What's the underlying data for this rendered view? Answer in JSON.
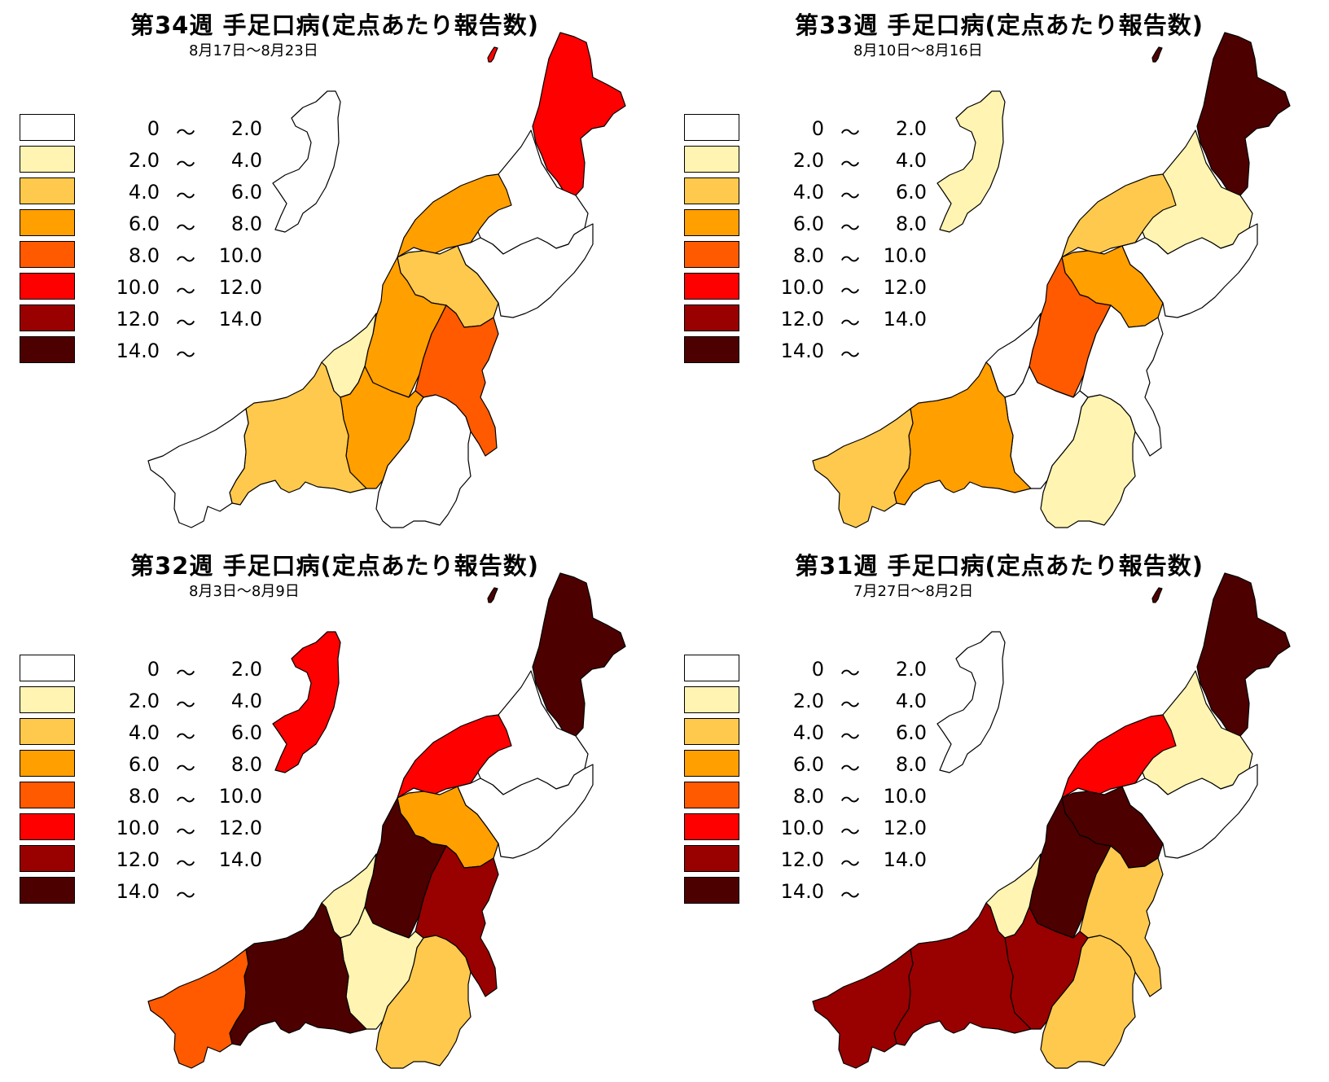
{
  "colors": {
    "c0": "#ffffff",
    "c1": "#fff4b2",
    "c2": "#ffc94d",
    "c3": "#ff9f00",
    "c4": "#ff5a00",
    "c5": "#ff0000",
    "c6": "#990000",
    "c7": "#4d0000"
  },
  "legend": [
    {
      "from": "0",
      "to": "2.0",
      "color": "#ffffff"
    },
    {
      "from": "2.0",
      "to": "4.0",
      "color": "#fff4b2"
    },
    {
      "from": "4.0",
      "to": "6.0",
      "color": "#ffc94d"
    },
    {
      "from": "6.0",
      "to": "8.0",
      "color": "#ff9f00"
    },
    {
      "from": "8.0",
      "to": "10.0",
      "color": "#ff5a00"
    },
    {
      "from": "10.0",
      "to": "12.0",
      "color": "#ff0000"
    },
    {
      "from": "12.0",
      "to": "14.0",
      "color": "#990000"
    },
    {
      "from": "14.0",
      "to": "",
      "color": "#4d0000"
    }
  ],
  "tilde": "～",
  "panels": [
    {
      "title": "第34週 手足口病(定点あたり報告数)",
      "date": "8月17日～8月23日",
      "regions": {
        "sado": 0,
        "awashima": 5,
        "murakami": 5,
        "shibata": 0,
        "niigata": 3,
        "niitsu": 2,
        "agano": 0,
        "sanjo": 3,
        "kashiwazaki": 1,
        "nagaoka": 3,
        "uonuma": 4,
        "minamiuonuma": 0,
        "tokamachi": 3,
        "joetsu": 2,
        "itoigawa": 0
      }
    },
    {
      "title": "第33週 手足口病(定点あたり報告数)",
      "date": "8月10日～8月16日",
      "regions": {
        "sado": 1,
        "awashima": 7,
        "murakami": 7,
        "shibata": 1,
        "niigata": 2,
        "niitsu": 3,
        "agano": 0,
        "sanjo": 4,
        "kashiwazaki": 0,
        "nagaoka": 4,
        "uonuma": 0,
        "minamiuonuma": 1,
        "tokamachi": 0,
        "joetsu": 3,
        "itoigawa": 2
      }
    },
    {
      "title": "第32週 手足口病(定点あたり報告数)",
      "date": "8月3日～8月9日",
      "regions": {
        "sado": 5,
        "awashima": 7,
        "murakami": 7,
        "shibata": 0,
        "niigata": 5,
        "niitsu": 3,
        "agano": 0,
        "sanjo": 7,
        "kashiwazaki": 1,
        "nagaoka": 7,
        "uonuma": 6,
        "minamiuonuma": 2,
        "tokamachi": 1,
        "joetsu": 7,
        "itoigawa": 4
      }
    },
    {
      "title": "第31週 手足口病(定点あたり報告数)",
      "date": "7月27日～8月2日",
      "regions": {
        "sado": 0,
        "awashima": 7,
        "murakami": 7,
        "shibata": 1,
        "niigata": 5,
        "niitsu": 7,
        "agano": 0,
        "sanjo": 7,
        "kashiwazaki": 1,
        "nagaoka": 7,
        "uonuma": 2,
        "minamiuonuma": 2,
        "tokamachi": 6,
        "joetsu": 6,
        "itoigawa": 6
      }
    }
  ]
}
